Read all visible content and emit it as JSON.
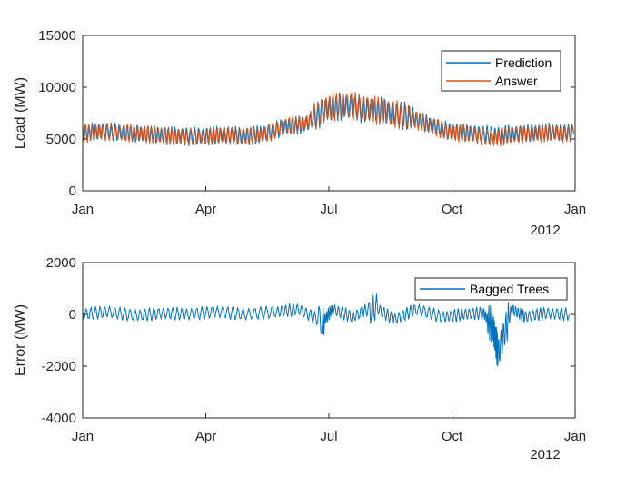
{
  "chart_data": [
    {
      "type": "line",
      "ylabel": "Load (MW)",
      "xlim": [
        "2011-01-01",
        "2012-01-01"
      ],
      "ylim": [
        0,
        15000
      ],
      "y_ticks": [
        "0",
        "5000",
        "10000",
        "15000"
      ],
      "x_ticks": [
        "Jan",
        "Apr",
        "Jul",
        "Oct",
        "Jan"
      ],
      "x_secondary_label": "2012",
      "legend_position": "top-right",
      "series": [
        {
          "name": "Prediction",
          "color": "#0072BD",
          "x": [
            "2011-01-01",
            "2011-01-15",
            "2011-02-01",
            "2011-02-15",
            "2011-03-01",
            "2011-03-15",
            "2011-04-01",
            "2011-04-15",
            "2011-05-01",
            "2011-05-15",
            "2011-06-01",
            "2011-06-15",
            "2011-07-01",
            "2011-07-15",
            "2011-08-01",
            "2011-08-15",
            "2011-09-01",
            "2011-09-15",
            "2011-10-01",
            "2011-10-15",
            "2011-11-01",
            "2011-11-15",
            "2011-12-01",
            "2011-12-15",
            "2011-12-31"
          ],
          "y": [
            5600,
            5800,
            5600,
            5500,
            5400,
            5300,
            5300,
            5400,
            5300,
            5500,
            6200,
            6400,
            7900,
            8200,
            7800,
            7600,
            7100,
            6400,
            5700,
            5600,
            5400,
            5500,
            5600,
            5700,
            5600
          ]
        },
        {
          "name": "Answer",
          "color": "#D95319",
          "x": [
            "2011-01-01",
            "2011-01-15",
            "2011-02-01",
            "2011-02-15",
            "2011-03-01",
            "2011-03-15",
            "2011-04-01",
            "2011-04-15",
            "2011-05-01",
            "2011-05-15",
            "2011-06-01",
            "2011-06-15",
            "2011-07-01",
            "2011-07-15",
            "2011-08-01",
            "2011-08-15",
            "2011-09-01",
            "2011-09-15",
            "2011-10-01",
            "2011-10-15",
            "2011-11-01",
            "2011-11-15",
            "2011-12-01",
            "2011-12-15",
            "2011-12-31"
          ],
          "y": [
            5500,
            5700,
            5600,
            5500,
            5300,
            5200,
            5200,
            5400,
            5200,
            5400,
            6300,
            6500,
            8000,
            8300,
            7900,
            7600,
            7000,
            6300,
            5600,
            5500,
            5000,
            5400,
            5500,
            5600,
            5500
          ]
        }
      ]
    },
    {
      "type": "line",
      "ylabel": "Error (MW)",
      "xlim": [
        "2011-01-01",
        "2012-01-01"
      ],
      "ylim": [
        -4000,
        2000
      ],
      "y_ticks": [
        "-4000",
        "-2000",
        "0",
        "2000"
      ],
      "x_ticks": [
        "Jan",
        "Apr",
        "Jul",
        "Oct",
        "Jan"
      ],
      "x_secondary_label": "2012",
      "legend_position": "top-right",
      "series": [
        {
          "name": "Bagged Trees",
          "color": "#0072BD",
          "x": [
            "2011-01-01",
            "2011-01-20",
            "2011-02-10",
            "2011-03-01",
            "2011-03-20",
            "2011-04-10",
            "2011-05-01",
            "2011-05-25",
            "2011-06-10",
            "2011-06-28",
            "2011-07-05",
            "2011-07-20",
            "2011-08-05",
            "2011-08-20",
            "2011-09-05",
            "2011-09-25",
            "2011-10-10",
            "2011-10-25",
            "2011-11-01",
            "2011-11-05",
            "2011-11-15",
            "2011-11-25",
            "2011-12-10",
            "2011-12-28"
          ],
          "y": [
            0,
            100,
            -50,
            50,
            0,
            100,
            0,
            100,
            200,
            -300,
            200,
            -100,
            300,
            -200,
            200,
            -100,
            0,
            50,
            -500,
            -1500,
            200,
            -100,
            50,
            0
          ]
        }
      ]
    }
  ]
}
